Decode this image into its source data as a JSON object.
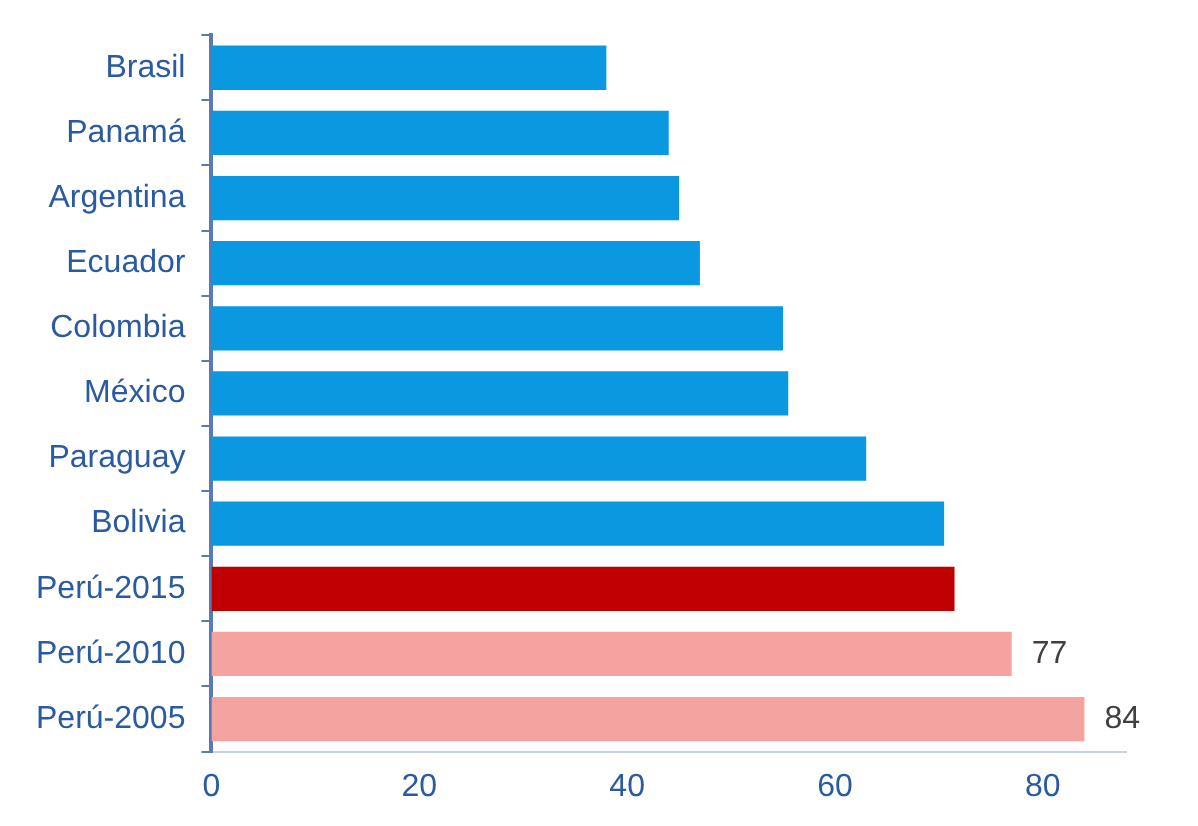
{
  "chart_data": {
    "type": "bar",
    "orientation": "horizontal",
    "categories": [
      "Brasil",
      "Panamá",
      "Argentina",
      "Ecuador",
      "Colombia",
      "México",
      "Paraguay",
      "Bolivia",
      "Perú-2015",
      "Perú-2010",
      "Perú-2005"
    ],
    "values": [
      38,
      44,
      45,
      47,
      55,
      55.5,
      63,
      70.5,
      71.5,
      77,
      84
    ],
    "colors": [
      "#0a98e0",
      "#0a98e0",
      "#0a98e0",
      "#0a98e0",
      "#0a98e0",
      "#0a98e0",
      "#0a98e0",
      "#0a98e0",
      "#c00000",
      "#f5a3a0",
      "#f5a3a0"
    ],
    "value_labels": [
      null,
      null,
      null,
      null,
      null,
      null,
      null,
      null,
      null,
      "77",
      "84"
    ],
    "xlim": [
      0,
      88
    ],
    "xticks": [
      0,
      20,
      40,
      60,
      80
    ],
    "grid": false,
    "legend": false
  }
}
